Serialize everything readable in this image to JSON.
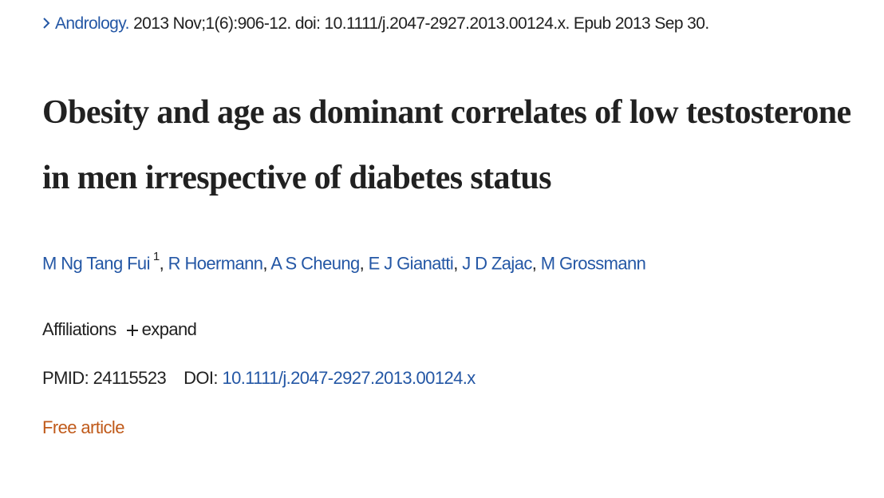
{
  "citation": {
    "journal": "Andrology.",
    "details": "2013 Nov;1(6):906-12. doi: 10.1111/j.2047-2927.2013.00124.x. Epub 2013 Sep 30."
  },
  "title": "Obesity and age as dominant correlates of low testosterone in men irrespective of diabetes status",
  "authors": [
    {
      "name": "M Ng Tang Fui",
      "affiliation": "1"
    },
    {
      "name": "R Hoermann"
    },
    {
      "name": "A S Cheung"
    },
    {
      "name": "E J Gianatti"
    },
    {
      "name": "J D Zajac"
    },
    {
      "name": "M Grossmann"
    }
  ],
  "author_separator": ",",
  "affiliations": {
    "label": "Affiliations",
    "toggle": "expand"
  },
  "identifiers": {
    "pmid_label": "PMID:",
    "pmid": "24115523",
    "doi_label": "DOI:",
    "doi": "10.1111/j.2047-2927.2013.00124.x"
  },
  "free_article": "Free article"
}
